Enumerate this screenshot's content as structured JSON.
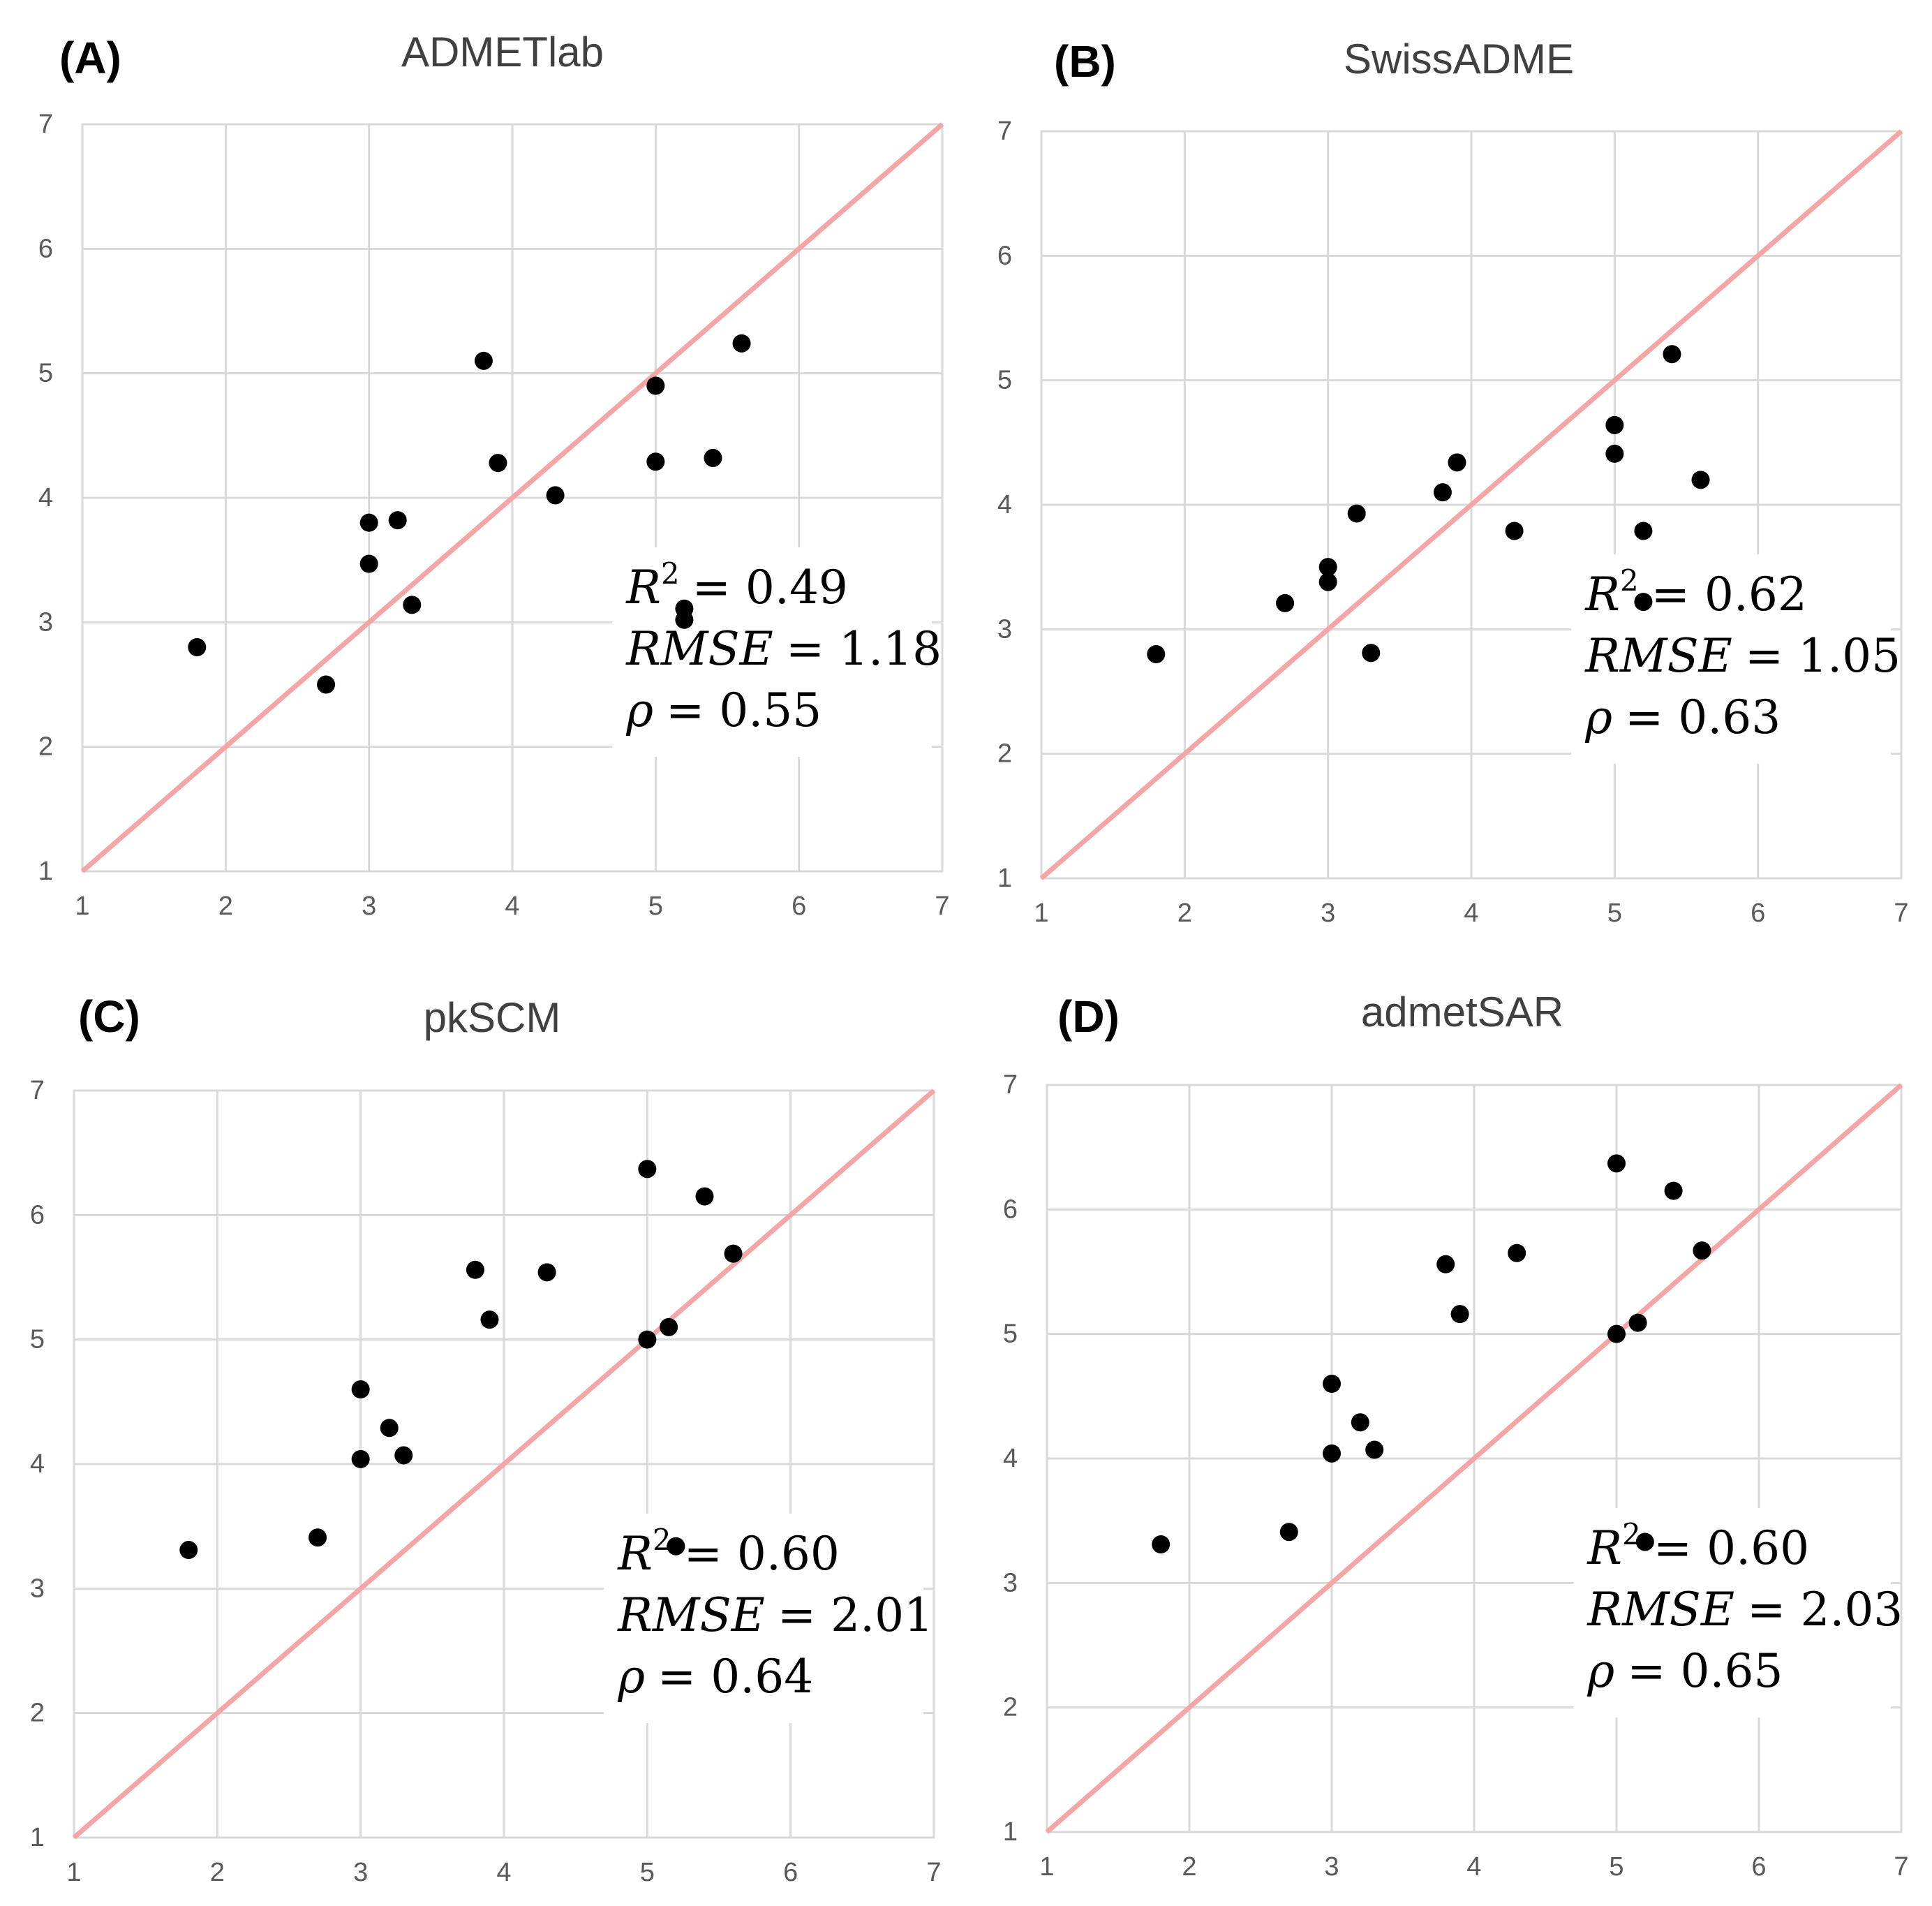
{
  "figure": {
    "colors": {
      "identity_line": "#f4a6a6",
      "grid": "#d9d9d9",
      "point": "#000000",
      "tick_text": "#595959",
      "title_text": "#404040"
    }
  },
  "chart_data": [
    {
      "type": "scatter",
      "panel": "(A)",
      "title": "ADMETlab",
      "xlabel": "",
      "ylabel": "",
      "xlim": [
        1,
        7
      ],
      "ylim": [
        1,
        7
      ],
      "xticks": [
        "1",
        "2",
        "3",
        "4",
        "5",
        "6",
        "7"
      ],
      "yticks": [
        "1",
        "2",
        "3",
        "4",
        "5",
        "6",
        "7"
      ],
      "grid": true,
      "identity_line": true,
      "points": [
        [
          1.8,
          2.8
        ],
        [
          2.7,
          2.5
        ],
        [
          3.0,
          3.8
        ],
        [
          3.0,
          3.47
        ],
        [
          3.2,
          3.82
        ],
        [
          3.3,
          3.14
        ],
        [
          3.8,
          5.1
        ],
        [
          3.9,
          4.28
        ],
        [
          4.3,
          4.02
        ],
        [
          5.0,
          4.9
        ],
        [
          5.0,
          4.29
        ],
        [
          5.4,
          4.32
        ],
        [
          5.2,
          3.11
        ],
        [
          5.2,
          3.02
        ],
        [
          5.6,
          5.24
        ]
      ],
      "stats": {
        "r2_label": "R",
        "r2_exp": "2",
        "r2_value": "= 0.49",
        "rmse_label": "RMSE",
        "rmse_value": "= 1.18",
        "rho_label": "ρ",
        "rho_value": "= 0.55"
      }
    },
    {
      "type": "scatter",
      "panel": "(B)",
      "title": "SwissADME",
      "xlabel": "",
      "ylabel": "",
      "xlim": [
        1,
        7
      ],
      "ylim": [
        1,
        7
      ],
      "xticks": [
        "1",
        "2",
        "3",
        "4",
        "5",
        "6",
        "7"
      ],
      "yticks": [
        "1",
        "2",
        "3",
        "4",
        "5",
        "6",
        "7"
      ],
      "grid": true,
      "identity_line": true,
      "points": [
        [
          1.8,
          2.8
        ],
        [
          2.7,
          3.21
        ],
        [
          3.0,
          3.5
        ],
        [
          3.0,
          3.38
        ],
        [
          3.2,
          3.93
        ],
        [
          3.3,
          2.81
        ],
        [
          3.8,
          4.1
        ],
        [
          3.9,
          4.34
        ],
        [
          4.3,
          3.79
        ],
        [
          5.0,
          4.64
        ],
        [
          5.0,
          4.41
        ],
        [
          5.2,
          3.79
        ],
        [
          5.2,
          3.22
        ],
        [
          5.4,
          5.21
        ],
        [
          5.6,
          4.2
        ]
      ],
      "stats": {
        "r2_label": "R",
        "r2_exp": "2",
        "r2_value": "= 0.62",
        "rmse_label": "RMSE",
        "rmse_value": "= 1.05",
        "rho_label": "ρ",
        "rho_value": "= 0.63"
      }
    },
    {
      "type": "scatter",
      "panel": "(C)",
      "title": "pkSCM",
      "xlabel": "",
      "ylabel": "",
      "xlim": [
        1,
        7
      ],
      "ylim": [
        1,
        7
      ],
      "xticks": [
        "1",
        "2",
        "3",
        "4",
        "5",
        "6",
        "7"
      ],
      "yticks": [
        "1",
        "2",
        "3",
        "4",
        "5",
        "6",
        "7"
      ],
      "grid": true,
      "identity_line": true,
      "points": [
        [
          1.8,
          3.31
        ],
        [
          2.7,
          3.41
        ],
        [
          3.0,
          4.6
        ],
        [
          3.0,
          4.04
        ],
        [
          3.2,
          4.29
        ],
        [
          3.3,
          4.07
        ],
        [
          3.8,
          5.56
        ],
        [
          3.9,
          5.16
        ],
        [
          4.3,
          5.54
        ],
        [
          5.0,
          6.37
        ],
        [
          5.0,
          5.0
        ],
        [
          5.15,
          5.1
        ],
        [
          5.2,
          3.34
        ],
        [
          5.4,
          6.15
        ],
        [
          5.6,
          5.69
        ]
      ],
      "stats": {
        "r2_label": "R",
        "r2_exp": "2",
        "r2_value": "= 0.60",
        "rmse_label": "RMSE",
        "rmse_value": "= 2.01",
        "rho_label": "ρ",
        "rho_value": "= 0.64"
      }
    },
    {
      "type": "scatter",
      "panel": "(D)",
      "title": "admetSAR",
      "xlabel": "",
      "ylabel": "",
      "xlim": [
        1,
        7
      ],
      "ylim": [
        1,
        7
      ],
      "xticks": [
        "1",
        "2",
        "3",
        "4",
        "5",
        "6",
        "7"
      ],
      "yticks": [
        "1",
        "2",
        "3",
        "4",
        "5",
        "6",
        "7"
      ],
      "grid": true,
      "identity_line": true,
      "points": [
        [
          1.8,
          3.31
        ],
        [
          2.7,
          3.41
        ],
        [
          3.0,
          4.6
        ],
        [
          3.0,
          4.04
        ],
        [
          3.2,
          4.29
        ],
        [
          3.3,
          4.07
        ],
        [
          3.8,
          5.56
        ],
        [
          3.9,
          5.16
        ],
        [
          4.3,
          5.65
        ],
        [
          5.0,
          6.37
        ],
        [
          5.0,
          5.0
        ],
        [
          5.15,
          5.09
        ],
        [
          5.2,
          3.33
        ],
        [
          5.4,
          6.15
        ],
        [
          5.6,
          5.67
        ]
      ],
      "stats": {
        "r2_label": "R",
        "r2_exp": "2",
        "r2_value": "= 0.60",
        "rmse_label": "RMSE",
        "rmse_value": "= 2.03",
        "rho_label": "ρ",
        "rho_value": "= 0.65"
      }
    }
  ]
}
